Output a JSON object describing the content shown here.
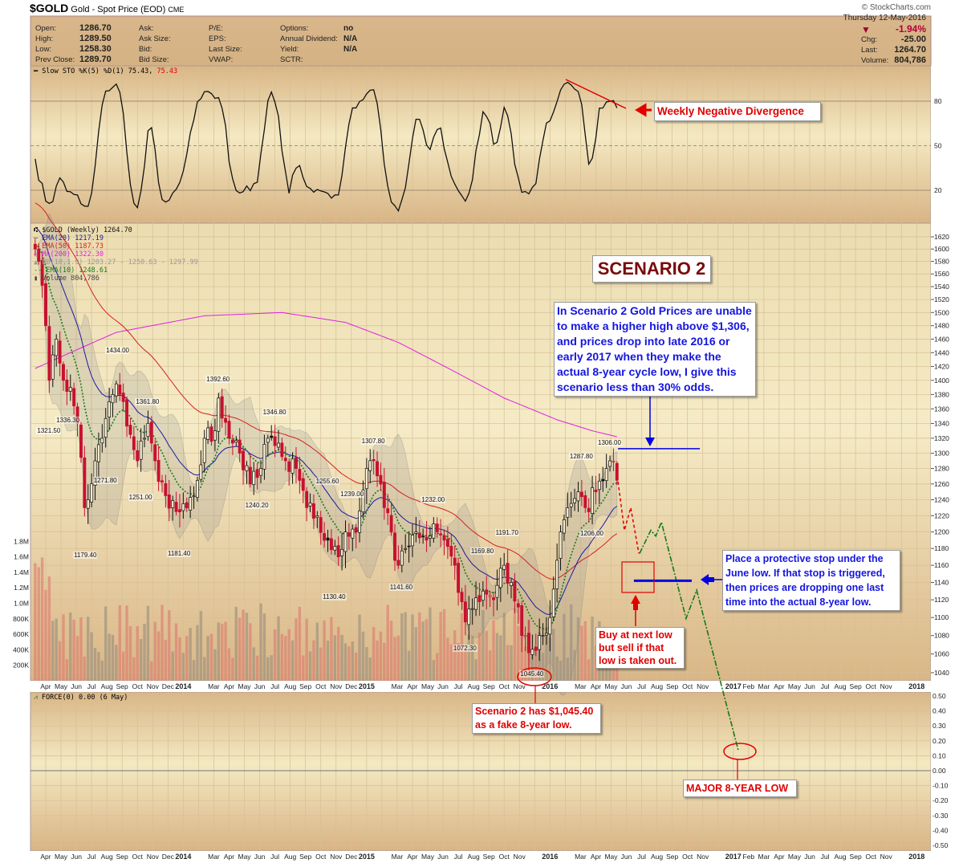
{
  "header": {
    "symbol": "$GOLD",
    "name": "Gold - Spot Price (EOD)",
    "exchange": "CME",
    "copyright": "© StockCharts.com",
    "date": "Thursday  12-May-2016",
    "pct_change": "-1.94%",
    "stats_left": [
      {
        "label": "Open:",
        "value": "1286.70"
      },
      {
        "label": "High:",
        "value": "1289.50"
      },
      {
        "label": "Low:",
        "value": "1258.30"
      },
      {
        "label": "Prev Close:",
        "value": "1289.70"
      }
    ],
    "col2": [
      "Ask:",
      "Ask Size:",
      "Bid:",
      "Bid Size:"
    ],
    "col3": [
      "P/E:",
      "EPS:",
      "Last Size:",
      "VWAP:"
    ],
    "col4": [
      {
        "label": "Options:",
        "value": "no"
      },
      {
        "label": "Annual Dividend:",
        "value": "N/A"
      },
      {
        "label": "Yield:",
        "value": "N/A"
      },
      {
        "label": "SCTR:",
        "value": ""
      }
    ],
    "stats_right": [
      {
        "label": "Chg:",
        "value": "-25.00"
      },
      {
        "label": "Last:",
        "value": "1264.70"
      },
      {
        "label": "Volume:",
        "value": "804,786"
      }
    ]
  },
  "stoch_legend": {
    "text": "Slow STO %K(5) %D(1) 75.43,",
    "value2": "75.43"
  },
  "price_legend": [
    {
      "text": "$GOLD (Weekly) 1264.70",
      "color": "#111111"
    },
    {
      "text": "EMA(20) 1217.19",
      "color": "#1a1aa0"
    },
    {
      "text": "EMA(50) 1187.73",
      "color": "#d62020"
    },
    {
      "text": "MA(200) 1322.30",
      "color": "#e020e0"
    },
    {
      "text": "BB(10,1.9) 1203.27 - 1250.63 - 1297.99",
      "color": "#999999"
    },
    {
      "text": "EMA(10) 1248.61",
      "color": "#1a7a1a"
    },
    {
      "text": "Volume 804,786",
      "color": "#444444"
    }
  ],
  "force_legend": "FORCE(0) 0.00 (6 May)",
  "annotations": {
    "divergence": "Weekly Negative Divergence",
    "scenario": "SCENARIO 2",
    "scenario_text": "In Scenario 2 Gold Prices are unable to make a higher high above $1,306, and prices drop into late 2016 or early 2017 when they make the actual 8-year cycle low, I give this scenario less than 30% odds.",
    "stop_text": "Place a protective stop under the June low. If that stop is triggered, then prices are dropping one last time into the actual 8-year low.",
    "buy_text": "Buy at next low but sell if that low is taken out.",
    "fake_low": "Scenario 2 has $1,045.40 as a fake 8-year low.",
    "major_low": "MAJOR 8-YEAR LOW"
  },
  "chart_data": {
    "type": "candlestick",
    "title": "$GOLD Gold - Spot Price (EOD) CME",
    "scale": "log",
    "x_unit": "weeks since Apr 1 2013",
    "price_ylim": [
      1040,
      1620
    ],
    "price_ticks": [
      1040,
      1060,
      1080,
      1100,
      1120,
      1140,
      1160,
      1180,
      1200,
      1220,
      1240,
      1260,
      1280,
      1300,
      1320,
      1340,
      1360,
      1380,
      1400,
      1420,
      1440,
      1460,
      1480,
      1500,
      1520,
      1540,
      1560,
      1580,
      1600,
      1620
    ],
    "volume_ticks": [
      "200K",
      "400K",
      "600K",
      "800K",
      "1.0M",
      "1.2M",
      "1.4M",
      "1.6M",
      "1.8M"
    ],
    "stoch_ticks": [
      20,
      50,
      80
    ],
    "force_ticks": [
      "0.50",
      "0.40",
      "0.30",
      "0.20",
      "0.10",
      "0.00",
      "-0.10",
      "-0.20",
      "-0.30",
      "-0.40",
      "-0.50"
    ],
    "month_labels": [
      "Apr",
      "May",
      "Jun",
      "Jul",
      "Aug",
      "Sep",
      "Oct",
      "Nov",
      "Dec",
      "2014",
      "",
      "Mar",
      "Apr",
      "May",
      "Jun",
      "Jul",
      "Aug",
      "Sep",
      "Oct",
      "Nov",
      "Dec",
      "2015",
      "",
      "Mar",
      "Apr",
      "May",
      "Jun",
      "Jul",
      "Aug",
      "Sep",
      "Oct",
      "Nov",
      "",
      "2016",
      "",
      "Mar",
      "Apr",
      "May",
      "Jun",
      "Jul",
      "Aug",
      "Sep",
      "Oct",
      "Nov",
      "",
      "2017",
      "Feb",
      "Mar",
      "Apr",
      "May",
      "Jun",
      "Jul",
      "Aug",
      "Sep",
      "Oct",
      "Nov",
      "",
      "2018"
    ],
    "bold_labels": [
      "2014",
      "2015",
      "2016",
      "2017",
      "2018"
    ],
    "close_path": [
      [
        -3,
        1600
      ],
      [
        -2,
        1580
      ],
      [
        0,
        1480
      ],
      [
        1,
        1400
      ],
      [
        3,
        1460
      ],
      [
        5,
        1400
      ],
      [
        7,
        1390
      ],
      [
        9,
        1340
      ],
      [
        11,
        1230
      ],
      [
        12,
        1240
      ],
      [
        14,
        1290
      ],
      [
        16,
        1320
      ],
      [
        18,
        1370
      ],
      [
        20,
        1395
      ],
      [
        22,
        1370
      ],
      [
        24,
        1325
      ],
      [
        26,
        1290
      ],
      [
        28,
        1320
      ],
      [
        29,
        1340
      ],
      [
        31,
        1290
      ],
      [
        34,
        1245
      ],
      [
        37,
        1225
      ],
      [
        39,
        1235
      ],
      [
        42,
        1245
      ],
      [
        45,
        1320
      ],
      [
        48,
        1330
      ],
      [
        49,
        1375
      ],
      [
        52,
        1320
      ],
      [
        55,
        1300
      ],
      [
        58,
        1260
      ],
      [
        61,
        1280
      ],
      [
        63,
        1320
      ],
      [
        65,
        1310
      ],
      [
        68,
        1290
      ],
      [
        71,
        1280
      ],
      [
        74,
        1230
      ],
      [
        77,
        1220
      ],
      [
        80,
        1190
      ],
      [
        83,
        1170
      ],
      [
        85,
        1200
      ],
      [
        88,
        1200
      ],
      [
        91,
        1280
      ],
      [
        93,
        1290
      ],
      [
        96,
        1230
      ],
      [
        100,
        1160
      ],
      [
        102,
        1180
      ],
      [
        105,
        1200
      ],
      [
        108,
        1190
      ],
      [
        110,
        1210
      ],
      [
        113,
        1190
      ],
      [
        116,
        1160
      ],
      [
        119,
        1095
      ],
      [
        121,
        1110
      ],
      [
        124,
        1130
      ],
      [
        127,
        1120
      ],
      [
        130,
        1160
      ],
      [
        132,
        1140
      ],
      [
        135,
        1080
      ],
      [
        138,
        1065
      ],
      [
        140,
        1080
      ],
      [
        143,
        1100
      ],
      [
        146,
        1200
      ],
      [
        148,
        1230
      ],
      [
        151,
        1250
      ],
      [
        153,
        1230
      ],
      [
        156,
        1250
      ],
      [
        159,
        1280
      ],
      [
        160,
        1290
      ],
      [
        161,
        1289.7
      ],
      [
        162,
        1264.7
      ]
    ],
    "ma200_path": [
      [
        -3,
        1417
      ],
      [
        20,
        1470
      ],
      [
        45,
        1495
      ],
      [
        67,
        1500
      ],
      [
        85,
        1485
      ],
      [
        100,
        1455
      ],
      [
        115,
        1415
      ],
      [
        130,
        1375
      ],
      [
        145,
        1345
      ],
      [
        155,
        1330
      ],
      [
        162,
        1322
      ]
    ],
    "price_labels": [
      {
        "week": 1,
        "price": 1321.5,
        "text": "1321.50"
      },
      {
        "week": 6.4,
        "price": 1336.3,
        "text": "1336.30"
      },
      {
        "week": 11.4,
        "price": 1179.4,
        "text": "1179.40"
      },
      {
        "week": 17,
        "price": 1271.8,
        "text": "1271.80"
      },
      {
        "week": 20.5,
        "price": 1434.0,
        "text": "1434.00"
      },
      {
        "week": 27,
        "price": 1251.0,
        "text": "1251.00"
      },
      {
        "week": 29,
        "price": 1361.8,
        "text": "1361.80"
      },
      {
        "week": 38,
        "price": 1181.4,
        "text": "1181.40"
      },
      {
        "week": 49,
        "price": 1392.6,
        "text": "1392.60"
      },
      {
        "week": 60,
        "price": 1240.2,
        "text": "1240.20"
      },
      {
        "week": 65,
        "price": 1346.8,
        "text": "1346.80"
      },
      {
        "week": 80,
        "price": 1255.6,
        "text": "1255.60"
      },
      {
        "week": 82,
        "price": 1130.4,
        "text": "1130.40"
      },
      {
        "week": 87,
        "price": 1239.0,
        "text": "1239.00"
      },
      {
        "week": 93,
        "price": 1307.8,
        "text": "1307.80"
      },
      {
        "week": 101,
        "price": 1141.6,
        "text": "1141.60"
      },
      {
        "week": 110,
        "price": 1232.0,
        "text": "1232.00"
      },
      {
        "week": 119,
        "price": 1072.3,
        "text": "1072.30"
      },
      {
        "week": 124,
        "price": 1169.8,
        "text": "1169.80"
      },
      {
        "week": 131,
        "price": 1191.7,
        "text": "1191.70"
      },
      {
        "week": 138,
        "price": 1045.4,
        "text": "1045.40"
      },
      {
        "week": 152,
        "price": 1287.8,
        "text": "1287.80"
      },
      {
        "week": 155,
        "price": 1206.0,
        "text": "1206.00"
      },
      {
        "week": 160,
        "price": 1306.0,
        "text": "1306.00"
      }
    ],
    "projection_red": [
      [
        162.3,
        1263
      ],
      [
        164.1,
        1202
      ],
      [
        165.9,
        1230
      ],
      [
        168.2,
        1174
      ]
    ],
    "projection_green": [
      [
        168.4,
        1174
      ],
      [
        171.6,
        1202
      ],
      [
        173,
        1195
      ],
      [
        174.6,
        1212
      ],
      [
        181.6,
        1099
      ],
      [
        184.6,
        1131
      ],
      [
        196.4,
        961
      ]
    ],
    "resistance": 1306,
    "stop_level": 1142,
    "colors": {
      "up": "#111111",
      "down": "#c8102e",
      "ema20": "#1a1aa0",
      "ema50": "#d62020",
      "ma200": "#e020e0",
      "ema10": "#1a7a1a"
    }
  }
}
